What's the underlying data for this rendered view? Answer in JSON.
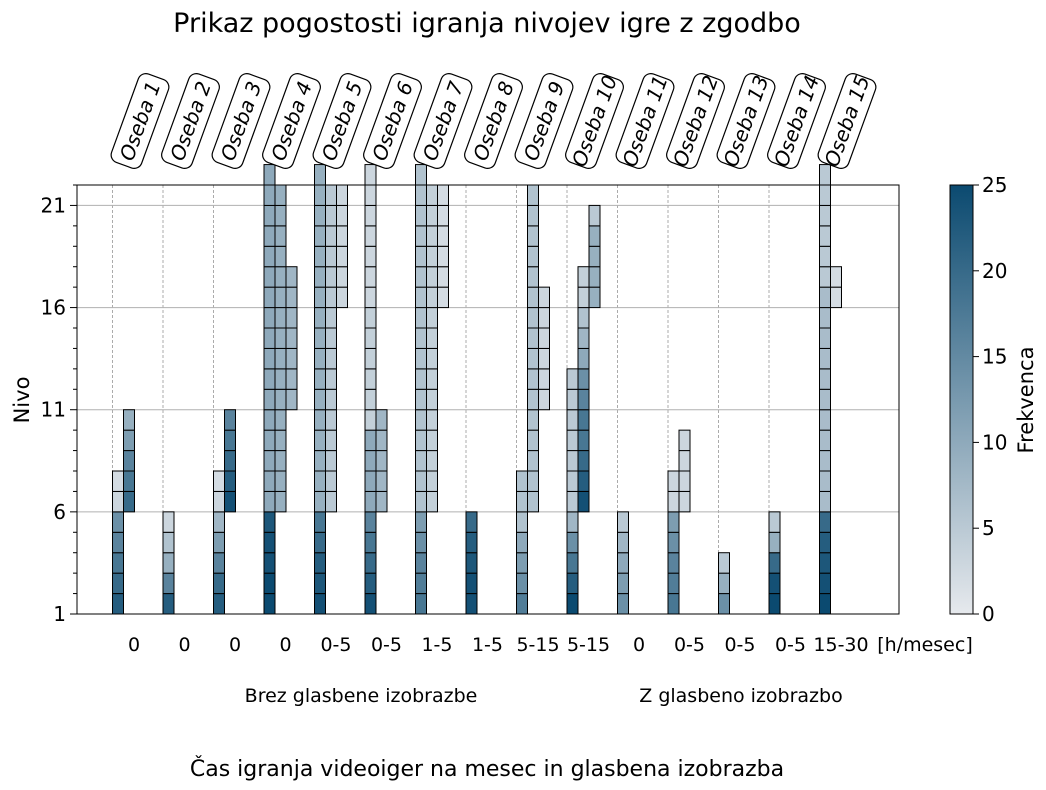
{
  "chart_data": {
    "type": "heatmap",
    "title": "Prikaz pogostosti igranja nivojev igre z zgodbo",
    "ylabel": "Nivo",
    "xlabel": "Čas igranja videoiger na mesec in glasbena izobrazba",
    "ylim": [
      1,
      22
    ],
    "yticks": [
      1,
      6,
      11,
      16,
      21
    ],
    "grid": true,
    "colorbar": {
      "label": "Frekvenca",
      "min": 0,
      "max": 25,
      "ticks": [
        0,
        5,
        10,
        15,
        20,
        25
      ],
      "color_low": "#e6e9ed",
      "color_high": "#0b4a70"
    },
    "persons": [
      "Oseba 1",
      "Oseba 2",
      "Oseba 3",
      "Oseba 4",
      "Oseba 5",
      "Oseba 6",
      "Oseba 7",
      "Oseba 8",
      "Oseba 9",
      "Oseba 10",
      "Oseba 11",
      "Oseba 12",
      "Oseba 13",
      "Oseba 14",
      "Oseba 15"
    ],
    "hours_labels": [
      "0",
      "0",
      "0",
      "0",
      "0-5",
      "0-5",
      "1-5",
      "1-5",
      "5-15",
      "5-15",
      "0",
      "0-5",
      "0-5",
      "0-5",
      "15-30"
    ],
    "hours_unit": "[h/mesec]",
    "group_labels": [
      "Brez glasbene izobrazbe",
      "Z glasbeno izobrazbo"
    ],
    "series": [
      {
        "person": "Oseba 1",
        "bars": [
          {
            "from": 1,
            "values": [
              22,
              20,
              18,
              16,
              14,
              3,
              2
            ]
          },
          {
            "from": 6,
            "values": [
              20,
              18,
              16,
              12,
              9
            ]
          }
        ]
      },
      {
        "person": "Oseba 2",
        "bars": [
          {
            "from": 1,
            "values": [
              22,
              16,
              9,
              6,
              3
            ]
          }
        ]
      },
      {
        "person": "Oseba 3",
        "bars": [
          {
            "from": 1,
            "values": [
              22,
              20,
              16,
              12,
              8,
              3,
              2
            ]
          },
          {
            "from": 6,
            "values": [
              24,
              22,
              20,
              18,
              16
            ]
          }
        ]
      },
      {
        "person": "Oseba 4",
        "bars": [
          {
            "from": 1,
            "values": [
              25,
              25,
              24,
              24,
              23,
              10,
              10,
              10,
              10,
              10,
              10,
              10,
              10,
              10,
              10,
              10,
              10,
              10,
              10,
              10,
              10,
              10
            ]
          },
          {
            "from": 6,
            "values": [
              9,
              9,
              9,
              9,
              9,
              9,
              9,
              9,
              9,
              9,
              9,
              9,
              9,
              9,
              9,
              9
            ]
          },
          {
            "from": 11,
            "values": [
              8,
              8,
              8,
              8,
              8,
              8,
              8
            ]
          }
        ]
      },
      {
        "person": "Oseba 5",
        "bars": [
          {
            "from": 1,
            "values": [
              24,
              23,
              22,
              20,
              18,
              9,
              9,
              9,
              9,
              9,
              9,
              9,
              9,
              9,
              9,
              9,
              9,
              9,
              9,
              9,
              9,
              9
            ]
          },
          {
            "from": 6,
            "values": [
              5,
              5,
              5,
              5,
              5,
              5,
              5,
              5,
              5,
              5,
              5,
              5,
              5,
              5,
              5,
              5
            ]
          },
          {
            "from": 16,
            "values": [
              3,
              3,
              3,
              3,
              3,
              3
            ]
          }
        ]
      },
      {
        "person": "Oseba 6",
        "bars": [
          {
            "from": 1,
            "values": [
              24,
              22,
              20,
              18,
              16,
              10,
              10,
              10,
              10,
              4,
              4,
              4,
              4,
              4,
              4,
              3,
              3,
              3,
              3,
              3,
              3,
              3
            ]
          },
          {
            "from": 6,
            "values": [
              8,
              8,
              8,
              8,
              8
            ]
          }
        ]
      },
      {
        "person": "Oseba 7",
        "bars": [
          {
            "from": 1,
            "values": [
              18,
              17,
              16,
              14,
              12,
              6,
              6,
              6,
              6,
              6,
              6,
              6,
              6,
              6,
              6,
              6,
              6,
              6,
              6,
              6,
              6,
              6
            ]
          },
          {
            "from": 6,
            "values": [
              4,
              4,
              4,
              4,
              4,
              4,
              4,
              4,
              4,
              4,
              4,
              4,
              4,
              4,
              4,
              4
            ]
          },
          {
            "from": 16,
            "values": [
              2,
              2,
              2,
              2,
              2,
              2
            ]
          }
        ]
      },
      {
        "person": "Oseba 8",
        "bars": [
          {
            "from": 1,
            "values": [
              24,
              24,
              23,
              22,
              20
            ]
          }
        ]
      },
      {
        "person": "Oseba 9",
        "bars": [
          {
            "from": 1,
            "values": [
              17,
              14,
              12,
              10,
              6,
              6,
              6
            ]
          },
          {
            "from": 6,
            "values": [
              6,
              6,
              6,
              6,
              6,
              6,
              6,
              6,
              6,
              6,
              6,
              6,
              6,
              6,
              6,
              6
            ]
          },
          {
            "from": 11,
            "values": [
              3,
              3,
              3,
              3,
              3,
              3
            ]
          }
        ]
      },
      {
        "person": "Oseba 10",
        "bars": [
          {
            "from": 1,
            "values": [
              25,
              22,
              18,
              14,
              8,
              5,
              5,
              5,
              5,
              5,
              5,
              5
            ]
          },
          {
            "from": 6,
            "values": [
              24,
              22,
              20,
              18,
              18,
              16,
              14,
              10,
              8,
              6,
              4,
              4
            ]
          },
          {
            "from": 16,
            "values": [
              9,
              9,
              9,
              9,
              5
            ]
          }
        ]
      },
      {
        "person": "Oseba 11",
        "bars": [
          {
            "from": 1,
            "values": [
              14,
              12,
              10,
              8,
              5
            ]
          }
        ]
      },
      {
        "person": "Oseba 12",
        "bars": [
          {
            "from": 1,
            "values": [
              18,
              17,
              16,
              14,
              12,
              3,
              3
            ]
          },
          {
            "from": 6,
            "values": [
              3,
              3,
              3,
              3
            ]
          }
        ]
      },
      {
        "person": "Oseba 13",
        "bars": [
          {
            "from": 1,
            "values": [
              14,
              9,
              5
            ]
          }
        ]
      },
      {
        "person": "Oseba 14",
        "bars": [
          {
            "from": 1,
            "values": [
              25,
              24,
              20,
              9,
              5
            ]
          }
        ]
      },
      {
        "person": "Oseba 15",
        "bars": [
          {
            "from": 1,
            "values": [
              25,
              24,
              23,
              22,
              20,
              7,
              7,
              7,
              7,
              7,
              7,
              7,
              7,
              7,
              7,
              7,
              5,
              5,
              5,
              5,
              5,
              5
            ]
          },
          {
            "from": 16,
            "values": [
              2,
              2
            ]
          }
        ]
      }
    ]
  }
}
